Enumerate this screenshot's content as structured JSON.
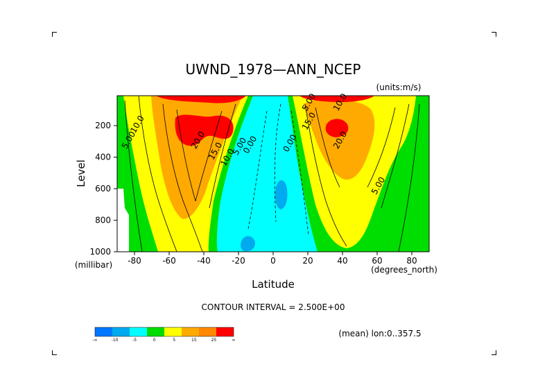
{
  "chart_data": {
    "type": "filled-contour",
    "title": "UWND_1978—ANN_NCEP",
    "units": "(units:m/s)",
    "xlabel": "Latitude",
    "x_units": "(degrees_north)",
    "ylabel": "Level",
    "y_units": "(millibar)",
    "xlim": [
      -90,
      90
    ],
    "ylim": [
      1000,
      10
    ],
    "x_ticks": [
      "-80",
      "-60",
      "-40",
      "-20",
      "0",
      "20",
      "40",
      "60",
      "80"
    ],
    "x_tick_values": [
      -80,
      -60,
      -40,
      -20,
      0,
      20,
      40,
      60,
      80
    ],
    "y_ticks": [
      "200",
      "400",
      "600",
      "800",
      "1000"
    ],
    "y_tick_values": [
      200,
      400,
      600,
      800,
      1000
    ],
    "contour_interval_text": "CONTOUR INTERVAL = 2.500E+00",
    "mean_text": "(mean) lon:0..357.5",
    "contour_labels": [
      {
        "text": "10.0",
        "lat": -77,
        "lev": 200
      },
      {
        "text": "5.00",
        "lat": -82,
        "lev": 300
      },
      {
        "text": "20.0",
        "lat": -42,
        "lev": 300
      },
      {
        "text": "15.0",
        "lat": -32,
        "lev": 370
      },
      {
        "text": "10.0",
        "lat": -25,
        "lev": 410
      },
      {
        "text": "5.00",
        "lat": -18,
        "lev": 340
      },
      {
        "text": "0.00",
        "lat": -12,
        "lev": 330
      },
      {
        "text": "0.00",
        "lat": 11,
        "lev": 320
      },
      {
        "text": "5.00",
        "lat": 22,
        "lev": 60
      },
      {
        "text": "10.0",
        "lat": 40,
        "lev": 60
      },
      {
        "text": "15.0",
        "lat": 22,
        "lev": 180
      },
      {
        "text": "20.0",
        "lat": 40,
        "lev": 300
      },
      {
        "text": "5.00",
        "lat": 62,
        "lev": 590
      }
    ],
    "regions": [
      {
        "name": "background-negative",
        "color": "#00ffff",
        "levels": "-5 to 0"
      },
      {
        "name": "sh-westerlies",
        "center_lat": -48,
        "center_lev": 200,
        "max": 27.5
      },
      {
        "name": "nh-westerlies",
        "center_lat": 36,
        "center_lev": 200,
        "max": 27.5
      },
      {
        "name": "tropical-easterlies",
        "center_lat": 4,
        "center_lev": 500,
        "min": -7.5
      }
    ]
  },
  "colorbar": {
    "colors": [
      "#0077ff",
      "#00aaee",
      "#00ffff",
      "#00dd00",
      "#ffff00",
      "#ffaa00",
      "#ff8800",
      "#ff0000"
    ],
    "labels": [
      "-∞",
      "-10",
      "-5",
      "0",
      "5",
      "15",
      "25",
      "∞"
    ]
  }
}
